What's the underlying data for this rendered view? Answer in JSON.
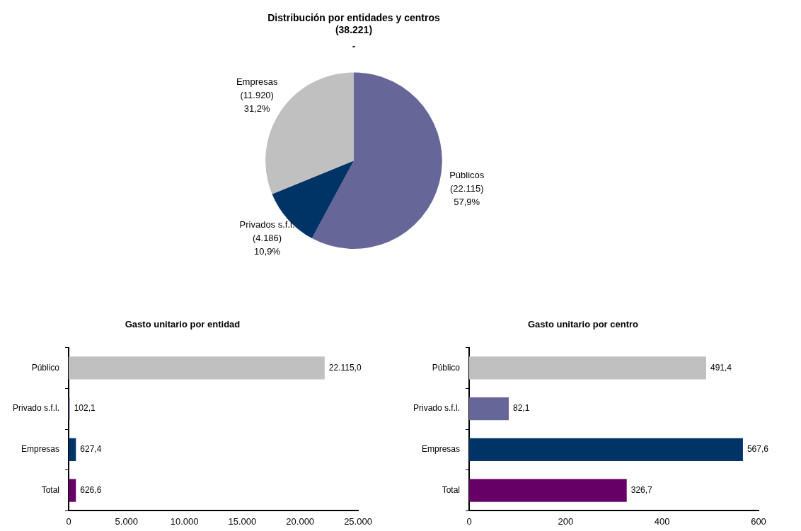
{
  "chart_data": [
    {
      "type": "pie",
      "title": "Distribución por entidades y centros\n(38.221)",
      "subtitle": "-",
      "categories": [
        "Públicos",
        "Privados s.f.l.",
        "Empresas"
      ],
      "values": [
        22115,
        4186,
        11920
      ],
      "colors": [
        "#666699",
        "#003366",
        "#c0c0c0"
      ],
      "value_labels": [
        "(22.115)\n57,9%",
        "(4.186)\n10,9%",
        "(11.920)\n31,2%"
      ],
      "legend": false
    },
    {
      "type": "bar",
      "orientation": "horizontal",
      "title": "Gasto unitario por entidad",
      "categories": [
        "Público",
        "Privado s.f.l.",
        "Empresas",
        "Total"
      ],
      "values": [
        22115.0,
        102.1,
        627.4,
        626.6
      ],
      "colors": [
        "#c0c0c0",
        "#666699",
        "#003366",
        "#660066"
      ],
      "value_labels": [
        "22.115,0",
        "102,1",
        "627,4",
        "626,6"
      ],
      "xlim": [
        0,
        25000
      ],
      "xticks": [
        0,
        {
          "value": 5000,
          "label": "5.000"
        },
        {
          "value": 10000,
          "label": "10.000"
        },
        {
          "value": 15000,
          "label": "15.000"
        },
        {
          "value": 20000,
          "label": "20.000"
        },
        {
          "value": 25000,
          "label": "25.000"
        }
      ],
      "grid": false,
      "legend": false
    },
    {
      "type": "bar",
      "orientation": "horizontal",
      "title": "Gasto unitario por centro",
      "categories": [
        "Público",
        "Privado s.f.l.",
        "Empresas",
        "Total"
      ],
      "values": [
        491.4,
        82.1,
        567.6,
        326.7
      ],
      "colors": [
        "#c0c0c0",
        "#666699",
        "#003366",
        "#660066"
      ],
      "value_labels": [
        "491,4",
        "82,1",
        "567,6",
        "326,7"
      ],
      "xlim": [
        0,
        600
      ],
      "xticks": [
        0,
        200,
        400,
        600
      ],
      "grid": false,
      "legend": false
    }
  ]
}
